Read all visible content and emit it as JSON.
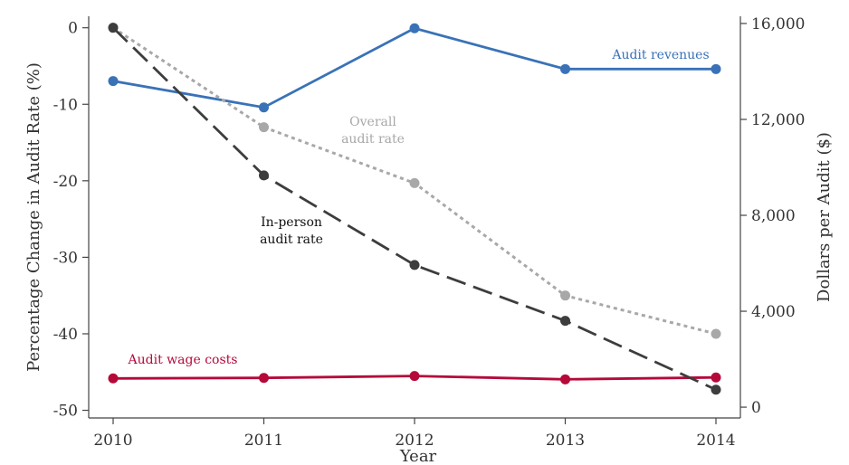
{
  "chart_data": {
    "type": "line",
    "xlabel": "Year",
    "ylabel_left": "Percentage Change in Audit Rate (%)",
    "ylabel_right": "Dollars per Audit ($)",
    "x": [
      2010,
      2011,
      2012,
      2013,
      2014
    ],
    "x_tick_labels": [
      "2010",
      "2011",
      "2012",
      "2013",
      "2014"
    ],
    "ylim_left": [
      -51,
      1.5
    ],
    "left_ticks": [
      0,
      -10,
      -20,
      -30,
      -40,
      -50
    ],
    "left_tick_labels": [
      "0",
      "-10",
      "-20",
      "-30",
      "-40",
      "-50"
    ],
    "ylim_right": [
      -450,
      16300
    ],
    "right_ticks": [
      0,
      4000,
      8000,
      12000,
      16000
    ],
    "right_tick_labels": [
      "0",
      "4,000",
      "8,000",
      "12,000",
      "16,000"
    ],
    "grid": false,
    "series": [
      {
        "name": "Audit revenues",
        "axis": "right",
        "style": "solid",
        "color": "#3a72b8",
        "values": [
          13600,
          12500,
          15800,
          14100,
          14100
        ],
        "label_lines": [
          "Audit revenues"
        ]
      },
      {
        "name": "Overall audit rate",
        "axis": "left",
        "style": "dotted",
        "color": "#a8a8a8",
        "values": [
          0,
          -13,
          -20.3,
          -35,
          -40
        ],
        "label_lines": [
          "Overall",
          "audit rate"
        ]
      },
      {
        "name": "In-person audit rate",
        "axis": "left",
        "style": "dashed",
        "color": "#3d3d3d",
        "values": [
          0,
          -19.3,
          -31,
          -38.3,
          -47.3
        ],
        "label_lines": [
          "In-person",
          "audit rate"
        ]
      },
      {
        "name": "Audit wage costs",
        "axis": "right",
        "style": "solid",
        "color": "#b5093a",
        "values": [
          1200,
          1220,
          1300,
          1160,
          1240
        ],
        "label_lines": [
          "Audit wage costs"
        ]
      }
    ]
  }
}
